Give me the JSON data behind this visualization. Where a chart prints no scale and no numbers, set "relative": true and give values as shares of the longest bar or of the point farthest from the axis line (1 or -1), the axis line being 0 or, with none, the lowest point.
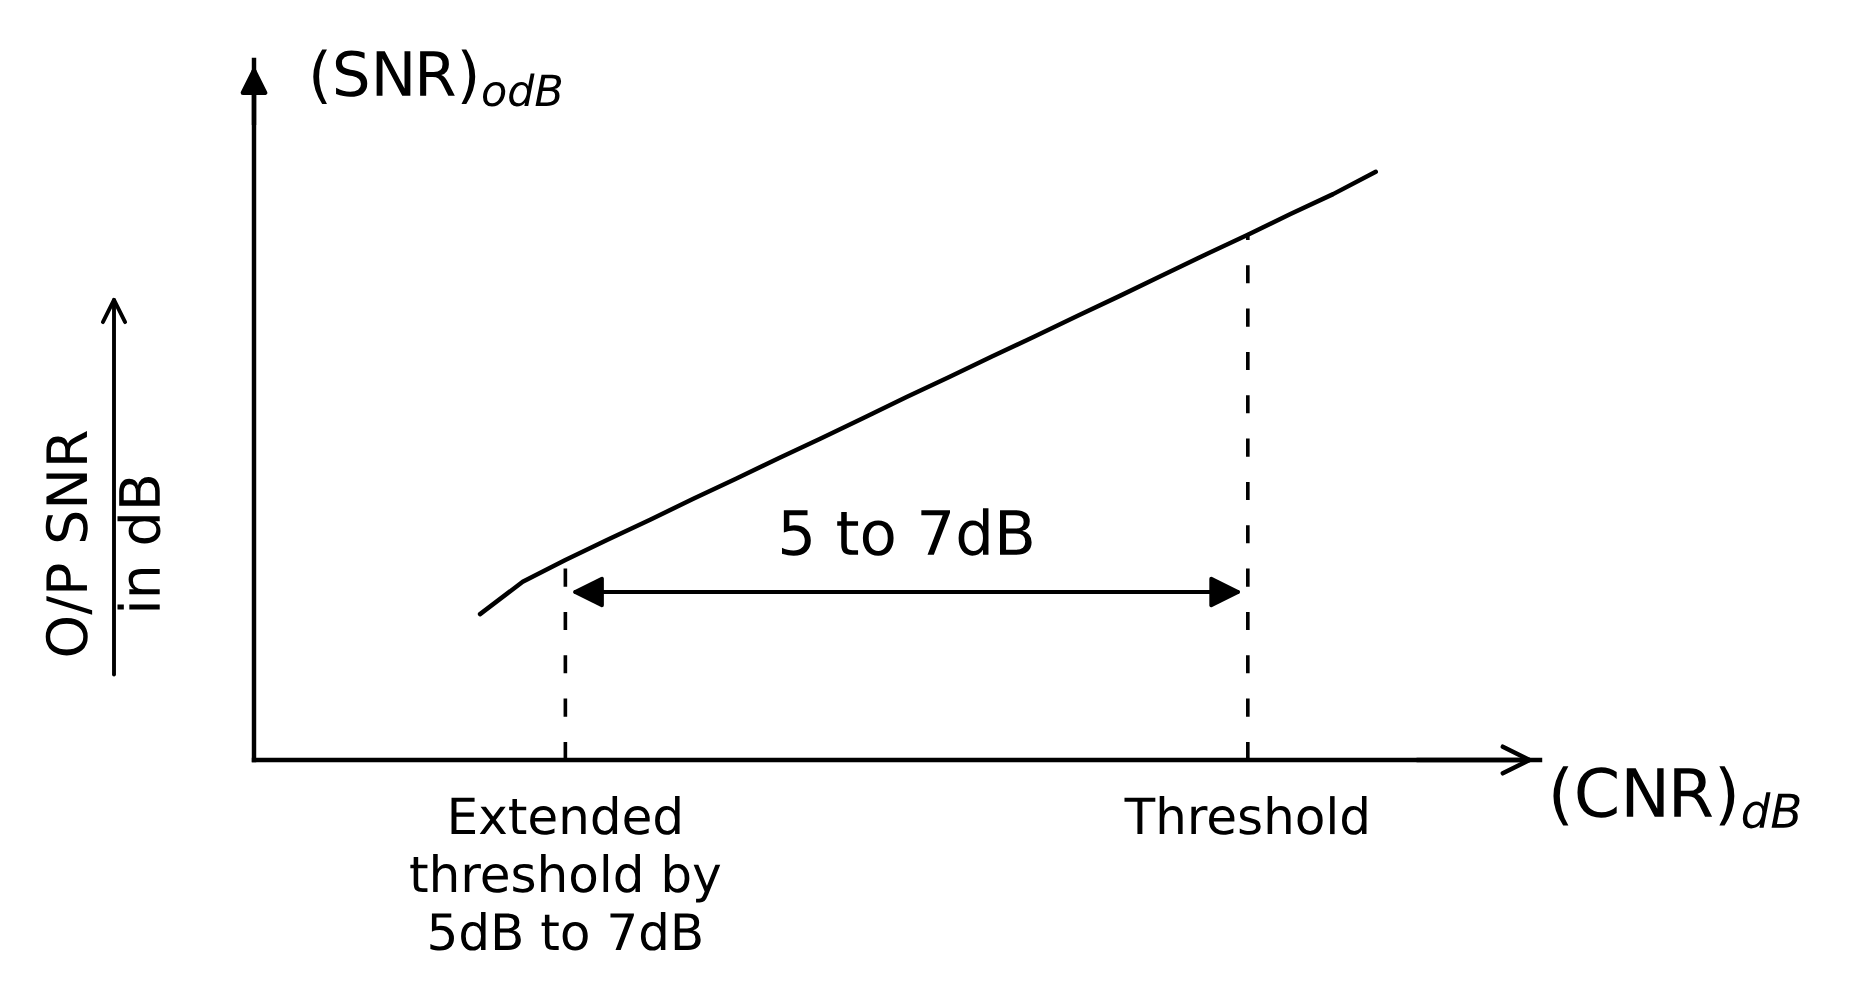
{
  "chart_data": {
    "type": "line",
    "relative": true,
    "categories": [
      null,
      null,
      "Extended\nthreshold by\n5dB to 7dB",
      null,
      null,
      null,
      null,
      null,
      null,
      null,
      null,
      null,
      null,
      null,
      null,
      null,
      null,
      null,
      "Threshold",
      null,
      null,
      null
    ],
    "values": [
      0.248,
      0.303,
      0.34,
      0.375,
      0.409,
      0.444,
      0.478,
      0.513,
      0.547,
      0.582,
      0.617,
      0.651,
      0.686,
      0.72,
      0.755,
      0.789,
      0.824,
      0.859,
      0.893,
      0.928,
      0.962,
      1
    ],
    "color": "#000000",
    "xlabel": "(CNR)$_{dB}$",
    "ylabel": "(SNR)$_{odB}$",
    "ref_lines": [
      {
        "axis": "x",
        "value": "Extended\nthreshold by\n5dB to 7dB",
        "line_style": "dashed",
        "color": "#000000"
      },
      {
        "axis": "x",
        "value": "Threshold",
        "line_style": "dashed",
        "color": "#000000"
      }
    ],
    "annotations": [
      "O/P SNR\nin dB",
      "5 to 7dB"
    ]
  }
}
